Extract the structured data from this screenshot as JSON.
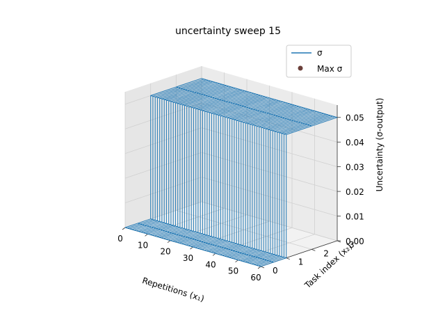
{
  "chart_data": {
    "type": "surface",
    "title": "uncertainty sweep 15",
    "xlabel": "Repetitions (x₁)",
    "ylabel": "Task index (x₂)",
    "zlabel": "Uncertainty (σ-output)",
    "xlim": [
      0,
      60
    ],
    "ylim": [
      0,
      3
    ],
    "zlim": [
      0,
      0.055
    ],
    "x_ticks": [
      "0",
      "10",
      "20",
      "30",
      "40",
      "50",
      "60"
    ],
    "y_ticks": [
      "0",
      "1",
      "2",
      "3"
    ],
    "z_ticks": [
      "0.00",
      "0.01",
      "0.02",
      "0.03",
      "0.04",
      "0.05"
    ],
    "grid": true,
    "legend_position": "top-right",
    "series": [
      {
        "name": "σ",
        "kind": "surface-wireframe",
        "color": "#1f77b4",
        "x_range": [
          0,
          60
        ],
        "y_range": [
          0,
          3
        ],
        "low_value": 0.0,
        "high_value": 0.05,
        "step_y": 1.0
      },
      {
        "name": "Max σ",
        "kind": "scatter-marker",
        "color": "#6b3f3a"
      }
    ]
  }
}
